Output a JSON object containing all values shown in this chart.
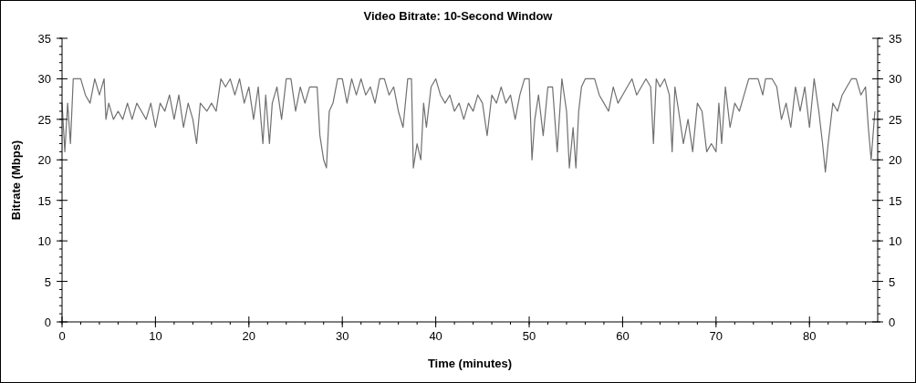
{
  "chart_data": {
    "type": "line",
    "title": "Video Bitrate: 10-Second Window",
    "xlabel": "Time (minutes)",
    "ylabel": "Bitrate (Mbps)",
    "y2label": null,
    "xlim": [
      0,
      87.3
    ],
    "xticks": [
      0,
      10,
      20,
      30,
      40,
      50,
      60,
      70,
      80
    ],
    "ylim": [
      0,
      35
    ],
    "yticks": [
      0,
      5,
      10,
      15,
      20,
      25,
      30,
      35
    ],
    "y2lim": [
      0,
      35
    ],
    "y2ticks": [
      0,
      5,
      10,
      15,
      20,
      25,
      30,
      35
    ],
    "grid": false,
    "line_style": "solid",
    "series": [
      {
        "color": "#707070",
        "x": [
          0,
          0.3,
          0.6,
          0.9,
          1.2,
          2,
          2.5,
          3,
          3.5,
          4,
          4.5,
          4.7,
          5,
          5.5,
          6,
          6.5,
          7,
          7.5,
          8,
          8.5,
          9,
          9.5,
          10,
          10.5,
          11,
          11.5,
          12,
          12.5,
          13,
          13.5,
          14,
          14.4,
          14.8,
          15.5,
          16,
          16.5,
          17,
          17.5,
          18,
          18.5,
          19,
          19.5,
          20,
          20.5,
          21,
          21.5,
          21.8,
          22.2,
          22.5,
          23,
          23.5,
          24,
          24.5,
          25,
          25.5,
          26,
          26.5,
          27,
          27.3,
          27.6,
          28,
          28.3,
          28.6,
          29,
          29.5,
          30,
          30.5,
          31,
          31.5,
          32,
          32.5,
          33,
          33.5,
          34,
          34.5,
          35,
          35.5,
          36,
          36.5,
          37,
          37.4,
          37.6,
          38,
          38.4,
          38.7,
          39,
          39.5,
          40,
          40.5,
          41,
          41.5,
          42,
          42.5,
          43,
          43.5,
          44,
          44.5,
          45,
          45.5,
          46,
          46.5,
          47,
          47.5,
          48,
          48.5,
          49,
          49.5,
          50,
          50.3,
          50.6,
          51,
          51.5,
          52,
          52.5,
          53,
          53.5,
          54,
          54.3,
          54.7,
          55,
          55.3,
          55.6,
          56,
          57,
          57.5,
          58,
          58.5,
          59,
          59.5,
          60,
          60.5,
          61,
          61.5,
          62,
          62.5,
          63,
          63.3,
          63.6,
          64,
          64.5,
          65,
          65.3,
          65.6,
          66,
          66.5,
          67,
          67.5,
          68,
          68.5,
          69,
          69.5,
          70,
          70.3,
          70.6,
          71,
          71.5,
          72,
          72.5,
          73,
          73.5,
          74,
          74.5,
          75,
          75.3,
          76,
          76.5,
          77,
          77.5,
          78,
          78.5,
          79,
          79.5,
          80,
          80.5,
          81,
          81.4,
          81.7,
          82,
          82.5,
          83,
          83.5,
          84,
          84.5,
          85,
          85.5,
          86,
          86.3,
          86.6,
          87
        ],
        "values": [
          27,
          21,
          27,
          22,
          30,
          30,
          28,
          27,
          30,
          28,
          30,
          25,
          27,
          25,
          26,
          25,
          27,
          25,
          27,
          26,
          25,
          27,
          24,
          27,
          26,
          28,
          25,
          28,
          24,
          27,
          25,
          22,
          27,
          26,
          27,
          26,
          30,
          29,
          30,
          28,
          30,
          27,
          29,
          25,
          29,
          22,
          28,
          22,
          27,
          29,
          25,
          30,
          30,
          26,
          29,
          27,
          29,
          29,
          29,
          23,
          20,
          19,
          26,
          27,
          30,
          30,
          27,
          30,
          28,
          30,
          28,
          29,
          27,
          30,
          30,
          28,
          29,
          26,
          24,
          30,
          30,
          19,
          22,
          20,
          27,
          24,
          29,
          30,
          28,
          27,
          28,
          26,
          27,
          25,
          27,
          26,
          28,
          27,
          23,
          28,
          27,
          29,
          27,
          28,
          25,
          28,
          30,
          30,
          20,
          25,
          28,
          23,
          29,
          29,
          21,
          30,
          26,
          19,
          24,
          19,
          26,
          29,
          30,
          30,
          28,
          27,
          26,
          29,
          27,
          28,
          29,
          30,
          28,
          29,
          30,
          29,
          22,
          30,
          29,
          30,
          28,
          21,
          29,
          26,
          22,
          25,
          21,
          27,
          26,
          21,
          22,
          21,
          27,
          22,
          29,
          24,
          27,
          26,
          28,
          30,
          30,
          30,
          28,
          30,
          30,
          29,
          25,
          27,
          24,
          29,
          26,
          29,
          24,
          30,
          26,
          22,
          18.5,
          22,
          27,
          26,
          28,
          29,
          30,
          30,
          28,
          29,
          24,
          20,
          26
        ]
      }
    ]
  }
}
